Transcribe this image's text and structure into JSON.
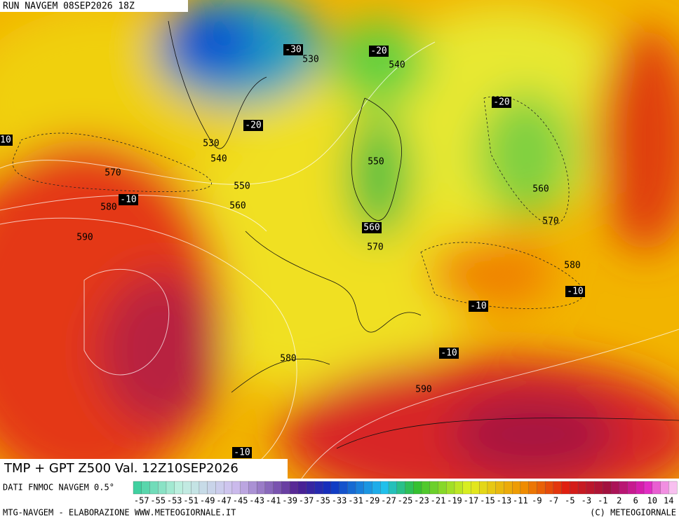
{
  "header": {
    "run": "RUN NAVGEM 08SEP2026 18Z"
  },
  "map": {
    "title": "TMP + GPT Z500 Val. 12Z10SEP2026",
    "labels": [
      "-30",
      "530",
      "-20",
      "540",
      "-20",
      "-20",
      "530",
      "540",
      "10",
      "570",
      "550",
      "550",
      "560",
      "-10",
      "580",
      "560",
      "560",
      "570",
      "590",
      "570",
      "580",
      "-10",
      "-10",
      "580",
      "-10",
      "590",
      "-10"
    ]
  },
  "legend": {
    "source": "DATI FNMOC NAVGEM 0.5°",
    "labels": [
      "-57",
      "-55",
      "-53",
      "-51",
      "-49",
      "-47",
      "-45",
      "-43",
      "-41",
      "-39",
      "-37",
      "-35",
      "-33",
      "-31",
      "-29",
      "-27",
      "-25",
      "-23",
      "-21",
      "-19",
      "-17",
      "-15",
      "-13",
      "-11",
      "-9",
      "-7",
      "-5",
      "-3",
      "-1",
      "2",
      "6",
      "10",
      "14"
    ]
  },
  "footer": {
    "credit": "MTG-NAVGEM - ELABORAZIONE WWW.METEOGIORNALE.IT",
    "copyright": "(C) METEOGIORNALE"
  }
}
